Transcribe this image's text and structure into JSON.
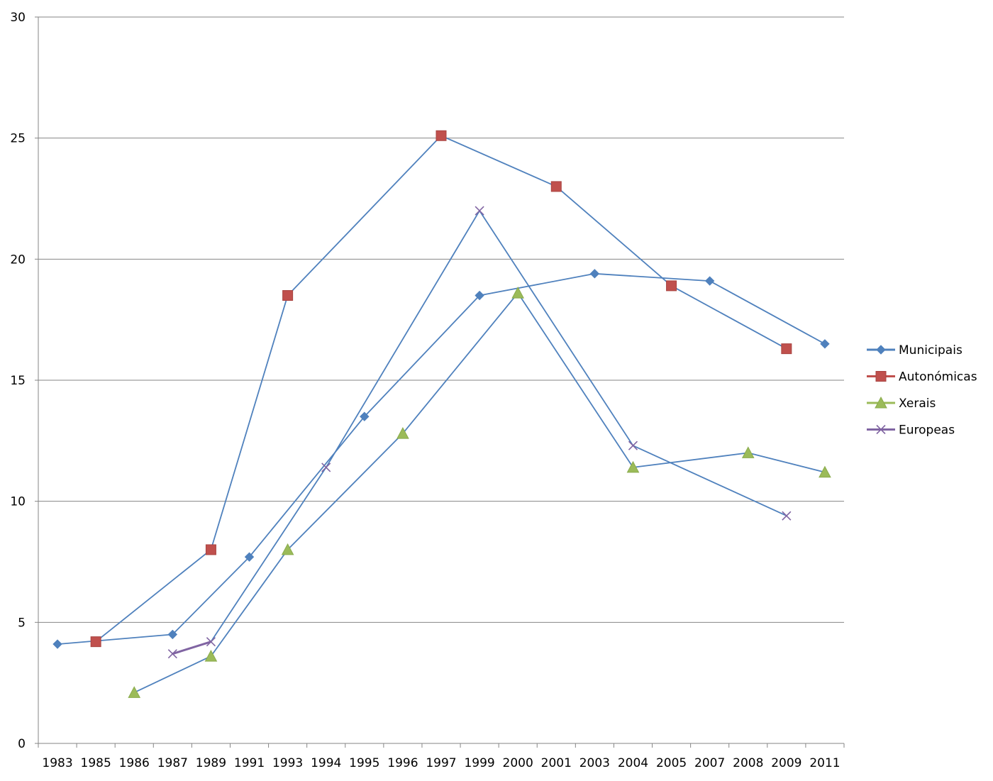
{
  "chart_data": {
    "type": "line",
    "title": "",
    "xlabel": "",
    "ylabel": "",
    "categories": [
      "1983",
      "1985",
      "1986",
      "1987",
      "1989",
      "1991",
      "1993",
      "1994",
      "1995",
      "1996",
      "1997",
      "1999",
      "2000",
      "2001",
      "2003",
      "2004",
      "2005",
      "2007",
      "2008",
      "2009",
      "2011"
    ],
    "ylim": [
      0,
      30
    ],
    "yticks": [
      0,
      5,
      10,
      15,
      20,
      25,
      30
    ],
    "grid": true,
    "legend_position": "right",
    "series": [
      {
        "name": "Municipais",
        "color": "#4F81BD",
        "marker": "diamond",
        "values": [
          4.1,
          null,
          null,
          4.5,
          null,
          7.7,
          null,
          null,
          13.5,
          null,
          null,
          18.5,
          null,
          null,
          19.4,
          null,
          null,
          19.1,
          null,
          null,
          16.5
        ]
      },
      {
        "name": "Autonómicas",
        "color": "#C0504D",
        "marker": "square",
        "values": [
          null,
          4.2,
          null,
          null,
          8.0,
          null,
          18.5,
          null,
          null,
          null,
          25.1,
          null,
          null,
          23.0,
          null,
          null,
          18.9,
          null,
          null,
          16.3,
          null
        ]
      },
      {
        "name": "Xerais",
        "color": "#9BBB59",
        "marker": "triangle",
        "values": [
          null,
          null,
          2.1,
          null,
          3.6,
          null,
          8.0,
          null,
          null,
          12.8,
          null,
          null,
          18.6,
          null,
          null,
          11.4,
          null,
          null,
          12.0,
          null,
          11.2
        ]
      },
      {
        "name": "Europeas",
        "color": "#8064A2",
        "marker": "x",
        "values": [
          null,
          null,
          null,
          3.7,
          4.2,
          null,
          null,
          11.4,
          null,
          null,
          null,
          22.0,
          null,
          null,
          null,
          12.3,
          null,
          null,
          null,
          9.4,
          null
        ]
      }
    ]
  }
}
